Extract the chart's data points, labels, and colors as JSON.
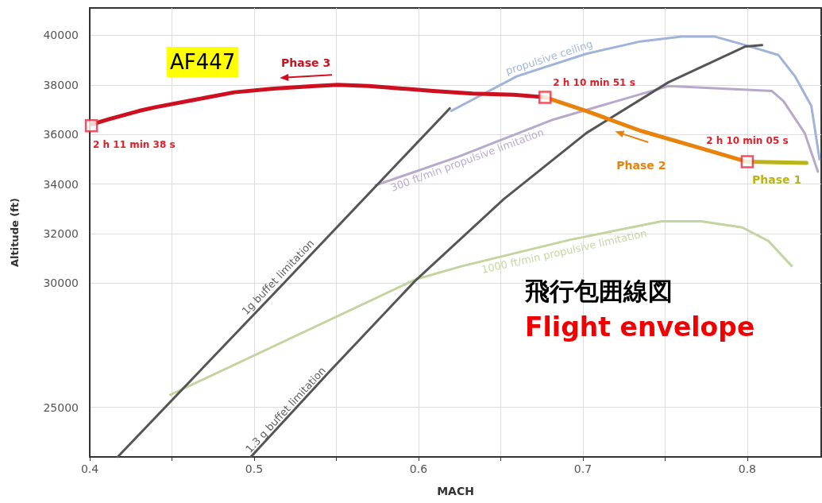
{
  "chart_data": {
    "type": "line",
    "title": "飛行包囲線図",
    "subtitle": "Flight envelope",
    "xlabel": "MACH",
    "ylabel": "Altitude (ft)",
    "xlim": [
      0.4,
      0.845
    ],
    "ylim": [
      23000,
      41100
    ],
    "xticks": [
      0.4,
      {
        "value": 0.45,
        "label": null
      },
      0.5,
      {
        "value": 0.55,
        "label": null
      },
      0.6,
      {
        "value": 0.65,
        "label": null
      },
      0.7,
      {
        "value": 0.75,
        "label": null
      },
      0.8
    ],
    "yticks": [
      25000,
      30000,
      32000,
      34000,
      36000,
      38000,
      40000
    ],
    "grid": true,
    "legend": false,
    "series": [
      {
        "name": "propulsive ceiling",
        "color": "#9fb4d8",
        "x": [
          0.62,
          0.66,
          0.702,
          0.735,
          0.76,
          0.78,
          0.799,
          0.819,
          0.829,
          0.839,
          0.844
        ],
        "values": [
          36950,
          38350,
          39250,
          39750,
          39950,
          39950,
          39600,
          39200,
          38350,
          37150,
          35000
        ]
      },
      {
        "name": "300 ft/min propulsive limitation",
        "color": "#b7a9cc",
        "x": [
          0.574,
          0.624,
          0.682,
          0.752,
          0.815,
          0.822,
          0.835,
          0.843
        ],
        "values": [
          33950,
          35100,
          36600,
          37950,
          37750,
          37350,
          36050,
          34500
        ]
      },
      {
        "name": "1000 ft/min propulsive limitation",
        "color": "#c4d4a0",
        "x": [
          0.449,
          0.598,
          0.627,
          0.692,
          0.748,
          0.772,
          0.797,
          0.813,
          0.827
        ],
        "values": [
          25500,
          30150,
          30700,
          31750,
          32500,
          32500,
          32250,
          31700,
          30700
        ]
      },
      {
        "name": "1g buffet limitation",
        "color": "#555555",
        "x": [
          0.417,
          0.518,
          0.619
        ],
        "values": [
          23000,
          30000,
          37050
        ]
      },
      {
        "name": "1.3 g buffet limitation",
        "color": "#555555",
        "x": [
          0.498,
          0.546,
          0.598,
          0.652,
          0.702,
          0.752,
          0.799,
          0.809
        ],
        "values": [
          23000,
          26450,
          30100,
          33400,
          36050,
          38100,
          39550,
          39600
        ]
      },
      {
        "name": "Phase 3",
        "color": "#cc1020",
        "x": [
          0.401,
          0.411,
          0.43,
          0.44,
          0.464,
          0.488,
          0.512,
          0.537,
          0.551,
          0.57,
          0.59,
          0.609,
          0.633,
          0.658,
          0.677
        ],
        "values": [
          36400,
          36600,
          36950,
          37100,
          37400,
          37700,
          37850,
          37950,
          38000,
          37950,
          37850,
          37750,
          37650,
          37600,
          37500
        ]
      },
      {
        "name": "Phase 2",
        "color": "#e8820a",
        "x": [
          0.677,
          0.702,
          0.735,
          0.769,
          0.8
        ],
        "values": [
          37500,
          36950,
          36150,
          35500,
          34900
        ]
      },
      {
        "name": "Phase 1",
        "color": "#b8b41a",
        "x": [
          0.8,
          0.836
        ],
        "values": [
          34900,
          34850
        ]
      },
      {
        "type": "scatter",
        "marker": "square",
        "color": "#e8283a",
        "x": [
          0.401,
          0.677,
          0.8
        ],
        "values": [
          36350,
          37500,
          34900
        ]
      }
    ],
    "annotations": [
      "AF447",
      {
        "text": "2 h 11 min 38 s",
        "x": 0.401,
        "y": 36350
      },
      {
        "text": "2 h 10 min 51 s",
        "x": 0.677,
        "y": 37500
      },
      {
        "text": "2 h 10 min 05 s",
        "x": 0.8,
        "y": 34900
      }
    ]
  }
}
